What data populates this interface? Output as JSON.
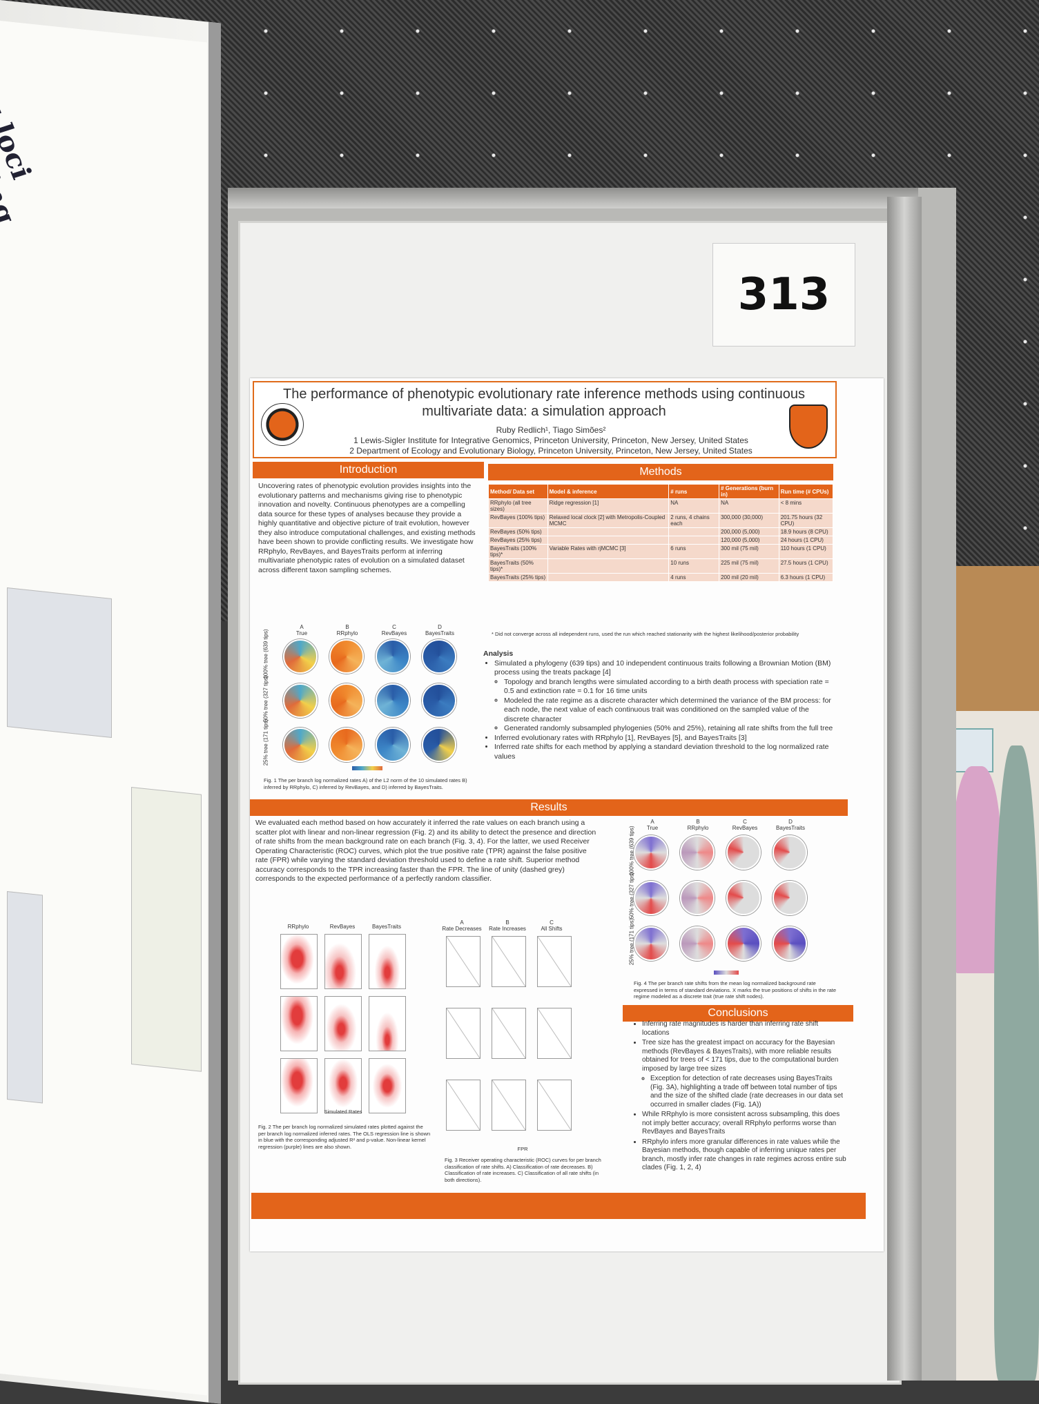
{
  "booth_number": "313",
  "poster": {
    "title_line1": "The performance of phenotypic evolutionary rate inference methods using continuous",
    "title_line2": "multivariate data: a simulation approach",
    "authors": "Ruby Redlich¹, Tiago Simões²",
    "affil1": "1 Lewis-Sigler Institute for Integrative Genomics, Princeton University, Princeton, New Jersey, United States",
    "affil2": "2 Department of Ecology and Evolutionary Biology, Princeton University, Princeton, New Jersey, United States",
    "sections": {
      "introduction": "Introduction",
      "methods": "Methods",
      "results": "Results",
      "conclusions": "Conclusions"
    },
    "intro_text": "Uncovering rates of phenotypic evolution provides insights into the evolutionary patterns and mechanisms giving rise to phenotypic innovation and novelty. Continuous phenotypes are a compelling data source for these types of analyses because they provide a highly quantitative and objective picture of trait evolution, however they also introduce computational challenges, and existing methods have been shown to provide conflicting results. We investigate how RRphylo, RevBayes, and BayesTraits perform at inferring multivariate phenotypic rates of evolution on a simulated dataset across different taxon sampling schemes.",
    "methods_table": {
      "headers": [
        "Method/ Data set",
        "Model & inference",
        "# runs",
        "# Generations (burn in)",
        "Run time (# CPUs)"
      ],
      "rows": [
        [
          "RRphylo (all tree sizes)",
          "Ridge regression [1]",
          "NA",
          "NA",
          "< 8 mins"
        ],
        [
          "RevBayes (100% tips)",
          "Relaxed local clock [2] with Metropolis-Coupled MCMC",
          "2 runs, 4 chains each",
          "300,000 (30,000)",
          "201.75 hours (32 CPU)"
        ],
        [
          "RevBayes (50% tips)",
          "",
          "",
          "200,000 (5,000)",
          "18.9 hours (8 CPU)"
        ],
        [
          "RevBayes (25% tips)",
          "",
          "",
          "120,000 (5,000)",
          "24 hours (1 CPU)"
        ],
        [
          "BayesTraits (100% tips)*",
          "Variable Rates with rjMCMC [3]",
          "6 runs",
          "300 mil (75 mil)",
          "110 hours (1 CPU)"
        ],
        [
          "BayesTraits (50% tips)*",
          "",
          "10 runs",
          "225 mil (75 mil)",
          "27.5 hours (1 CPU)"
        ],
        [
          "BayesTraits (25% tips)",
          "",
          "4 runs",
          "200 mil (20 mil)",
          "6.3 hours (1 CPU)"
        ]
      ],
      "footnote": "* Did not converge across all independent runs, used the run which reached stationarity with the highest likelihood/posterior probability"
    },
    "analysis_heading": "Analysis",
    "analysis_items": [
      "Simulated a phylogeny (639 tips) and 10 independent continuous traits following a Brownian Motion (BM) process using the treats package [4]",
      "Topology and branch lengths were simulated according to a birth death process with speciation rate = 0.5 and extinction rate = 0.1 for 16 time units",
      "Modeled the rate regime as a discrete character which determined the variance of the BM process: for each node, the next value of each continuous trait was conditioned on the sampled value of the discrete character",
      "Generated randomly subsampled phylogenies (50% and 25%), retaining all rate shifts from the full tree",
      "Inferred evolutionary rates with RRphylo [1], RevBayes [5], and BayesTraits [3]",
      "Inferred rate shifts for each method by applying a standard deviation threshold to the log normalized rate values"
    ],
    "fig1": {
      "cols": [
        "True",
        "RRphylo",
        "RevBayes",
        "BayesTraits"
      ],
      "col_letters": [
        "A",
        "B",
        "C",
        "D"
      ],
      "rows": [
        "100% tree (639 tips)",
        "50% tree (327 tips)",
        "25% tree (171 tips)"
      ],
      "caption": "Fig. 1 The per branch log normalized rates A) of the L2 norm of the 10 simulated rates B) inferred by RRphylo, C) inferred by RevBayes, and D) inferred by BayesTraits."
    },
    "results_text": "We evaluated each method based on how accurately it inferred the rate values on each branch using a scatter plot with linear and non-linear regression (Fig. 2) and its ability to detect the presence and direction of rate shifts from the mean background rate on each branch (Fig. 3, 4). For the latter, we used Receiver Operating Characteristic (ROC) curves, which plot the true positive rate (TPR) against the false positive rate (FPR) while varying the standard deviation threshold used to define a rate shift. Superior method accuracy corresponds to the TPR increasing faster than the FPR. The line of unity (dashed grey) corresponds to the expected performance of a perfectly random classifier.",
    "fig2": {
      "cols": [
        "RRphylo",
        "RevBayes",
        "BayesTraits"
      ],
      "xlabel": "Simulated Rates",
      "caption": "Fig. 2 The per branch log normalized simulated rates plotted against the per branch log normalized inferred rates. The OLS regression line is shown in blue with the corresponding adjusted R² and p-value. Non-linear kernel regression (purple) lines are also shown."
    },
    "fig3": {
      "cols": [
        "Rate Decreases",
        "Rate Increases",
        "All Shifts"
      ],
      "col_letters": [
        "A",
        "B",
        "C"
      ],
      "xlabel": "FPR",
      "caption": "Fig. 3 Receiver operating characteristic (ROC) curves for per branch classification of rate shifts. A) Classification of rate decreases. B) Classification of rate increases. C) Classification of all rate shifts (in both directions)."
    },
    "fig4": {
      "cols": [
        "True",
        "RRphylo",
        "RevBayes",
        "BayesTraits"
      ],
      "col_letters": [
        "A",
        "B",
        "C",
        "D"
      ],
      "rows": [
        "100% tree (639 tips)",
        "50% tree (327 tips)",
        "25% tree (171 tips)"
      ],
      "caption": "Fig. 4 The per branch rate shifts from the mean log normalized background rate expressed in terms of standard deviations. X marks the true positions of shifts in the rate regime modeled as a discrete trait (true rate shift nodes)."
    },
    "conclusions": [
      "Inferring rate magnitudes is harder than inferring rate shift locations",
      "Tree size has the greatest impact on accuracy for the Bayesian methods (RevBayes & BayesTraits), with more reliable results obtained for trees of < 171 tips, due to the computational burden imposed by large tree sizes",
      "Exception for detection of rate decreases using BayesTraits (Fig. 3A), highlighting a trade off between total number of tips and the size of the shifted clade (rate decreases in our data set occurred in smaller clades (Fig. 1A))",
      "While RRphylo is more consistent across subsampling, this does not imply better accuracy; overall RRphylo performs worse than RevBayes and BayesTraits",
      "RRphylo infers more granular differences in rate values while the Bayesian methods, though capable of inferring unique rates per branch, mostly infer rate changes in rate regimes across entire sub clades (Fig. 1, 2, 4)"
    ],
    "colors": {
      "accent": "#e3641a",
      "table_cell": "#f5d9cb"
    }
  },
  "left_poster": {
    "title_fragment": "ying loci underlying local adaptation in European Drosophila melanogaster populations"
  }
}
